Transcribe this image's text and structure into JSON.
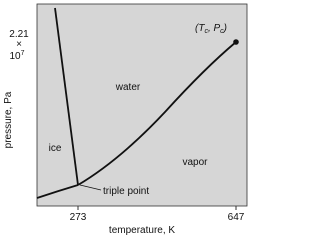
{
  "axes": {
    "x_label": "temperature, K",
    "y_label": "pressure, Pa",
    "x_ticks": [
      "273",
      "647"
    ],
    "y_tick": {
      "mantissa": "2.21",
      "times": "×",
      "base": "10",
      "exponent": "7"
    }
  },
  "regions": {
    "ice": "ice",
    "water": "water",
    "vapor": "vapor"
  },
  "points": {
    "triple": "triple point",
    "critical": {
      "open": "(T",
      "sub1": "c",
      "mid": ", P",
      "sub2": "c",
      "close": ")"
    }
  }
}
